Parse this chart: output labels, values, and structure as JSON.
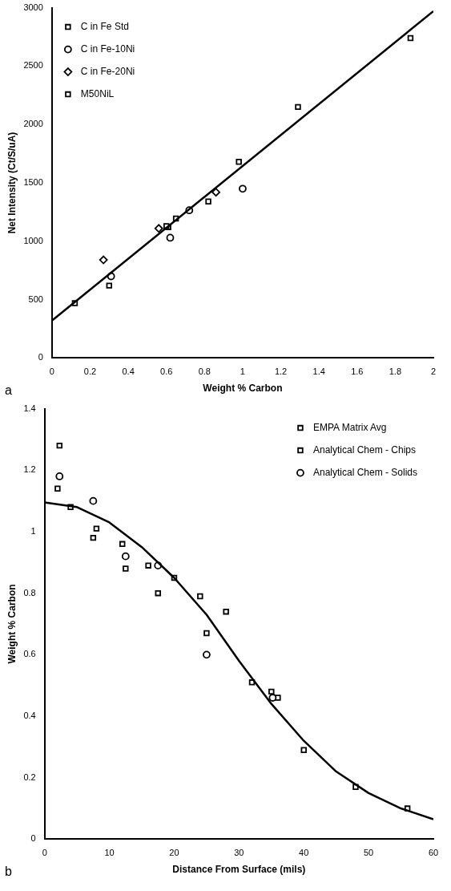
{
  "chart_data": [
    {
      "type": "scatter",
      "xlabel": "Weight % Carbon",
      "ylabel": "Net Intensity (Ct/S/uA)",
      "xlim": [
        0,
        2
      ],
      "xticks": [
        0,
        0.2,
        0.4,
        0.6,
        0.8,
        1,
        1.2,
        1.4,
        1.6,
        1.8,
        2
      ],
      "ylim": [
        0,
        3000
      ],
      "yticks": [
        0,
        500,
        1000,
        1500,
        2000,
        2500,
        3000
      ],
      "grid": false,
      "legend": "top left",
      "annotations": [
        "a"
      ],
      "series": [
        {
          "name": "C in Fe Std",
          "color": "#000000",
          "marker": "square",
          "x": [
            0.3,
            0.61,
            0.98,
            1.29
          ],
          "values": [
            620,
            1120,
            1680,
            2150
          ]
        },
        {
          "name": "C in Fe-10Ni",
          "color": "#000000",
          "marker": "circle",
          "x": [
            0.31,
            0.62,
            0.72,
            1.0
          ],
          "values": [
            700,
            1030,
            1265,
            1450
          ]
        },
        {
          "name": "C in Fe-20Ni",
          "color": "#000000",
          "marker": "diamond",
          "x": [
            0.27,
            0.56,
            0.86
          ],
          "values": [
            840,
            1110,
            1420
          ]
        },
        {
          "name": "M50NiL",
          "color": "#000000",
          "marker": "square",
          "x": [
            0.12,
            0.6,
            0.65,
            0.82,
            1.88
          ],
          "values": [
            470,
            1130,
            1195,
            1340,
            2740
          ]
        },
        {
          "type": "line",
          "color": "#000000",
          "marker": "none",
          "x": [
            0,
            2
          ],
          "values": [
            320,
            2970
          ]
        }
      ]
    },
    {
      "type": "scatter",
      "xlabel": "Distance From Surface (mils)",
      "ylabel": "Weight % Carbon",
      "xlim": [
        0,
        60
      ],
      "xticks": [
        0,
        10,
        20,
        30,
        40,
        50,
        60
      ],
      "ylim": [
        0,
        1.4
      ],
      "yticks": [
        0,
        0.2,
        0.4,
        0.6,
        0.8,
        1,
        1.2,
        1.4
      ],
      "grid": false,
      "legend": "top right",
      "annotations": [
        "b"
      ],
      "series": [
        {
          "name": "EMPA Matrix Avg",
          "color": "#000000",
          "marker": "square",
          "x": [
            2,
            4,
            8,
            12,
            16,
            20,
            24,
            28,
            32,
            36,
            40,
            48,
            56
          ],
          "values": [
            1.14,
            1.08,
            1.01,
            0.96,
            0.89,
            0.85,
            0.79,
            0.74,
            0.51,
            0.46,
            0.29,
            0.17,
            0.1
          ]
        },
        {
          "name": "Analytical Chem - Chips",
          "color": "#000000",
          "marker": "square",
          "x": [
            2.3,
            7.5,
            12.5,
            17.5,
            25,
            35
          ],
          "values": [
            1.28,
            0.98,
            0.88,
            0.8,
            0.67,
            0.48
          ]
        },
        {
          "name": "Analytical Chem - Solids",
          "color": "#000000",
          "marker": "circle",
          "x": [
            2.3,
            7.5,
            12.5,
            17.5,
            25,
            35.2
          ],
          "values": [
            1.18,
            1.1,
            0.92,
            0.89,
            0.6,
            0.46
          ]
        },
        {
          "type": "line",
          "color": "#000000",
          "marker": "none",
          "x": [
            0,
            5,
            10,
            15,
            20,
            25,
            30,
            35,
            40,
            45,
            50,
            55,
            60
          ],
          "values": [
            1.095,
            1.08,
            1.03,
            0.95,
            0.85,
            0.73,
            0.58,
            0.44,
            0.32,
            0.22,
            0.15,
            0.1,
            0.065
          ]
        }
      ]
    }
  ]
}
